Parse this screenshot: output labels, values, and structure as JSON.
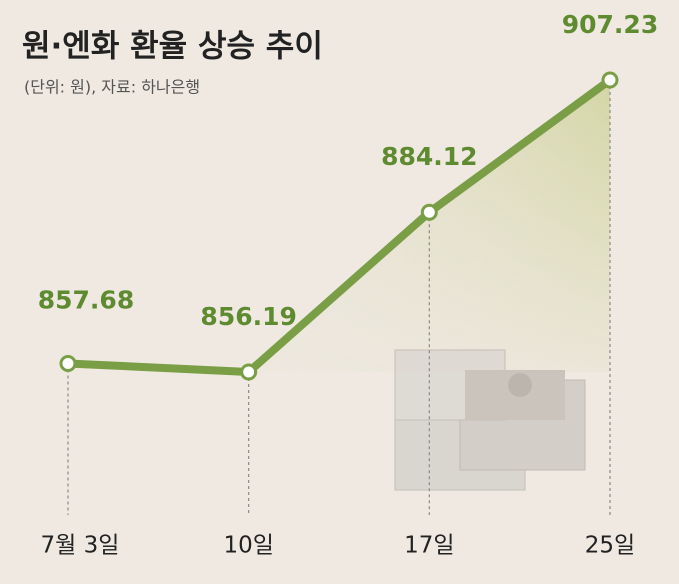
{
  "chart_data": {
    "type": "line",
    "title": "원·엔화 환율 상승 추이",
    "subtitle": "(단위: 원), 자료: 하나은행",
    "categories": [
      "7월 3일",
      "10일",
      "17일",
      "25일"
    ],
    "series": [
      {
        "values": [
          857.68,
          856.19,
          884.12,
          907.23
        ],
        "color": "#7a9e45"
      }
    ]
  }
}
